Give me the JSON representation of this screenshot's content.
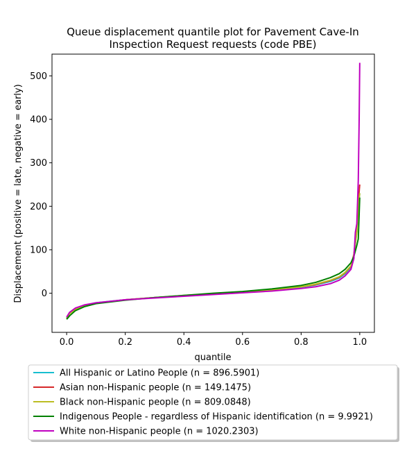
{
  "chart_data": {
    "type": "line",
    "title_lines": [
      "Queue displacement quantile plot for Pavement Cave-In",
      "Inspection Request  requests (code PBE)"
    ],
    "xlabel": "quantile",
    "ylabel": "Displacement (positive = late, negative = early)",
    "xlim": [
      -0.05,
      1.05
    ],
    "ylim": [
      -90,
      550
    ],
    "xticks": [
      0.0,
      0.2,
      0.4,
      0.6,
      0.8,
      1.0
    ],
    "xtick_labels": [
      "0.0",
      "0.2",
      "0.4",
      "0.6",
      "0.8",
      "1.0"
    ],
    "yticks": [
      0,
      100,
      200,
      300,
      400,
      500
    ],
    "ytick_labels": [
      "0",
      "100",
      "200",
      "300",
      "400",
      "500"
    ],
    "grid": false,
    "legend_placement": "below-plot",
    "series": [
      {
        "name": "All Hispanic or Latino People (n = 896.5901)",
        "color": "#17becf",
        "x": [
          0.0,
          0.01,
          0.03,
          0.06,
          0.1,
          0.2,
          0.3,
          0.4,
          0.5,
          0.6,
          0.7,
          0.8,
          0.85,
          0.9,
          0.93,
          0.95,
          0.97,
          0.98,
          0.99,
          0.995,
          1.0
        ],
        "y": [
          -57,
          -45,
          -35,
          -28,
          -22,
          -15,
          -10,
          -6,
          -2,
          2,
          7,
          14,
          19,
          27,
          35,
          45,
          60,
          85,
          140,
          200,
          230
        ]
      },
      {
        "name": "Asian non-Hispanic people (n = 149.1475)",
        "color": "#d62728",
        "x": [
          0.0,
          0.01,
          0.03,
          0.06,
          0.1,
          0.2,
          0.3,
          0.4,
          0.5,
          0.6,
          0.7,
          0.8,
          0.85,
          0.9,
          0.93,
          0.95,
          0.97,
          0.98,
          0.99,
          0.995,
          1.0
        ],
        "y": [
          -58,
          -46,
          -36,
          -29,
          -23,
          -15,
          -10,
          -6,
          -2,
          3,
          8,
          15,
          20,
          29,
          37,
          47,
          62,
          90,
          150,
          210,
          250
        ]
      },
      {
        "name": "Black non-Hispanic people (n = 809.0848)",
        "color": "#bcbd22",
        "x": [
          0.0,
          0.01,
          0.03,
          0.06,
          0.1,
          0.2,
          0.3,
          0.4,
          0.5,
          0.6,
          0.7,
          0.8,
          0.85,
          0.9,
          0.93,
          0.95,
          0.97,
          0.98,
          0.99,
          0.995,
          1.0
        ],
        "y": [
          -58,
          -47,
          -37,
          -29,
          -23,
          -15,
          -10,
          -5,
          -1,
          3,
          8,
          15,
          21,
          30,
          38,
          48,
          63,
          88,
          140,
          200,
          230
        ]
      },
      {
        "name": "Indigenous People - regardless of Hispanic identification (n = 9.9921)",
        "color": "#008000",
        "x": [
          0.0,
          0.01,
          0.03,
          0.06,
          0.1,
          0.2,
          0.3,
          0.4,
          0.5,
          0.6,
          0.7,
          0.8,
          0.85,
          0.9,
          0.93,
          0.95,
          0.97,
          0.98,
          0.99,
          0.995,
          1.0
        ],
        "y": [
          -60,
          -52,
          -40,
          -31,
          -24,
          -16,
          -10,
          -5,
          0,
          4,
          10,
          18,
          25,
          36,
          45,
          55,
          70,
          85,
          110,
          125,
          220
        ]
      },
      {
        "name": "White non-Hispanic people (n = 1020.2303)",
        "color": "#bf00bf",
        "x": [
          0.0,
          0.01,
          0.03,
          0.06,
          0.1,
          0.2,
          0.3,
          0.4,
          0.5,
          0.6,
          0.7,
          0.8,
          0.85,
          0.9,
          0.93,
          0.95,
          0.97,
          0.98,
          0.985,
          0.99,
          0.995,
          0.998,
          1.0
        ],
        "y": [
          -55,
          -44,
          -34,
          -27,
          -22,
          -15,
          -11,
          -7,
          -3,
          1,
          5,
          11,
          15,
          22,
          30,
          40,
          55,
          80,
          140,
          160,
          260,
          400,
          530
        ]
      }
    ]
  }
}
